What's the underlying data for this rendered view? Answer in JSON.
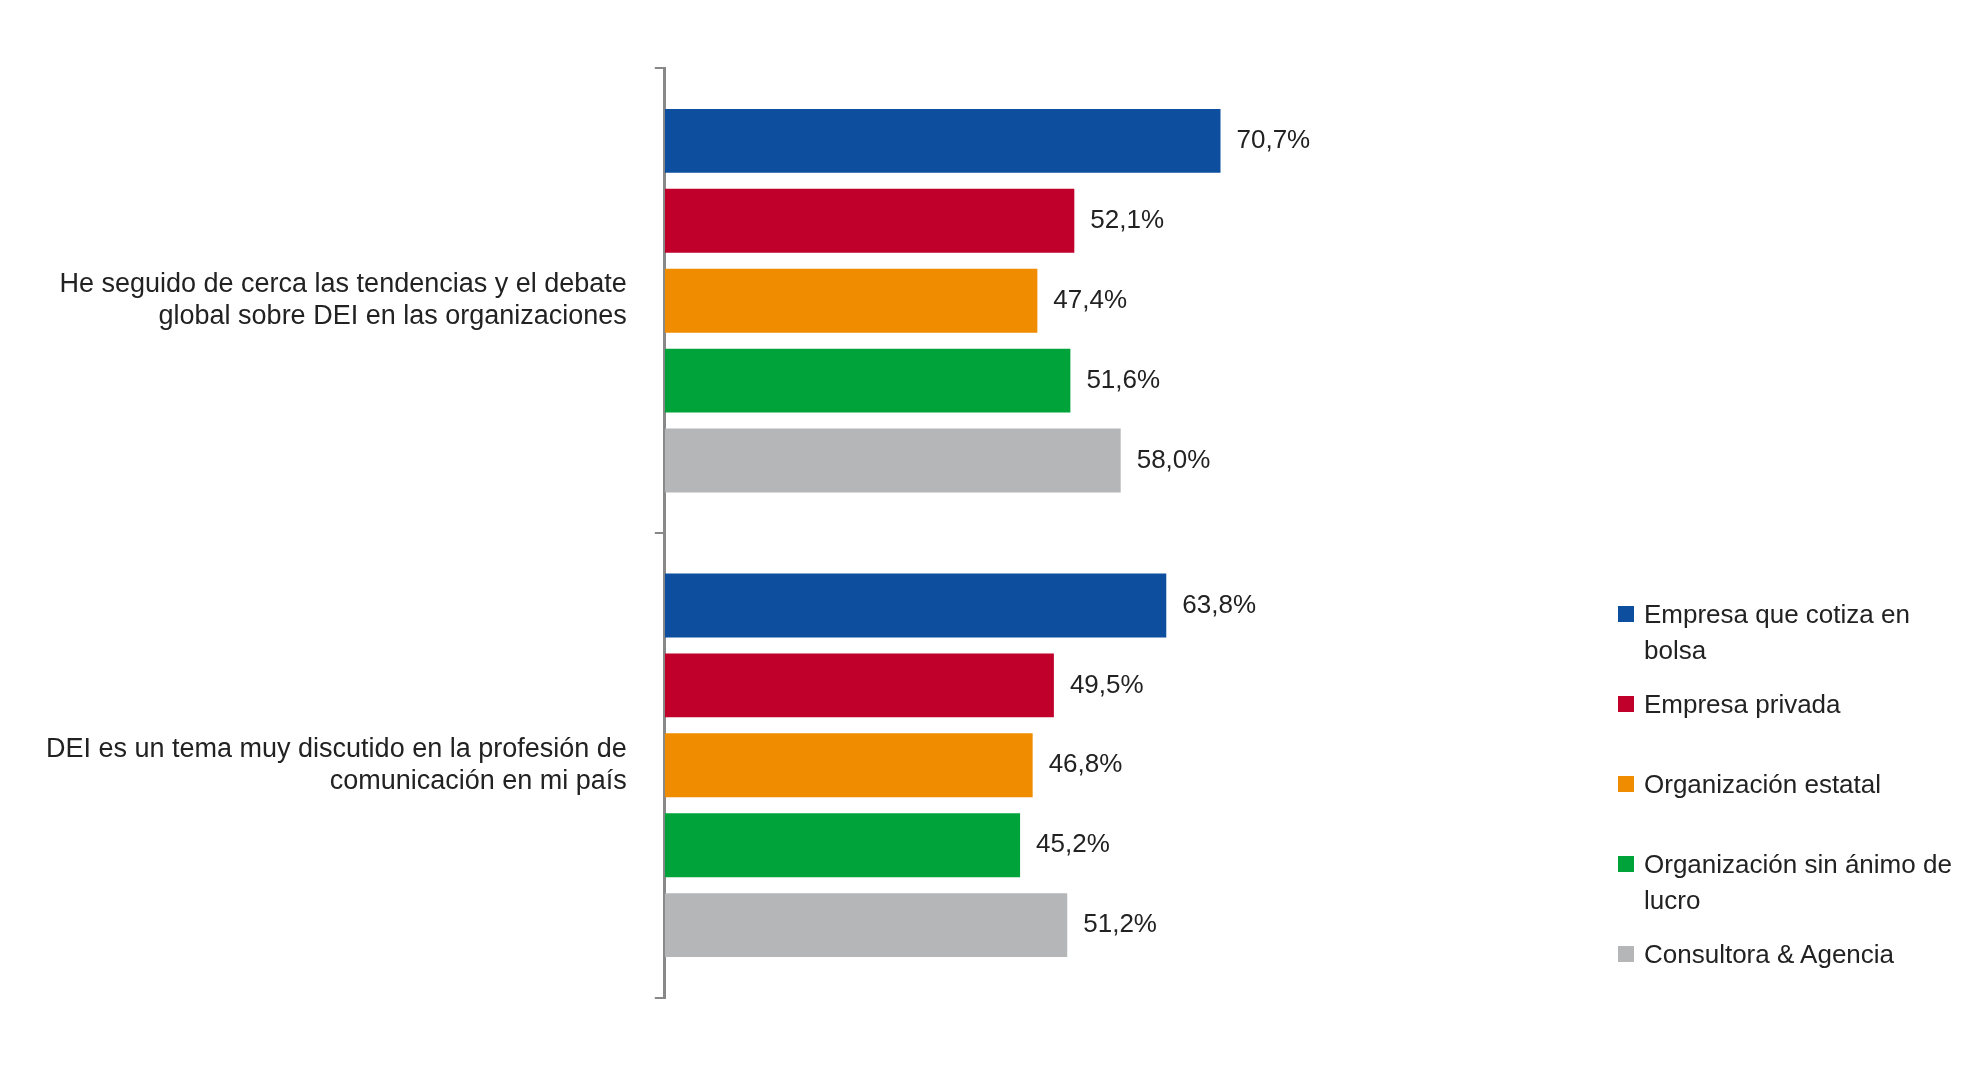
{
  "chart_data": {
    "type": "bar",
    "orientation": "horizontal",
    "legend": "right",
    "categories": [
      "He seguido de cerca las tendencias y el debate global sobre DEI en las organizaciones",
      "DEI es un tema muy discutido en la profesión de comunicación en mi país"
    ],
    "series": [
      {
        "name": "Empresa que cotiza en bolsa",
        "color": "#0d4f9e",
        "values": [
          70.7,
          63.8
        ],
        "value_labels": [
          "70,7%",
          "63,8%"
        ]
      },
      {
        "name": "Empresa privada",
        "color": "#c0002b",
        "values": [
          52.1,
          49.5
        ],
        "value_labels": [
          "52,1%",
          "49,5%"
        ]
      },
      {
        "name": "Organización estatal",
        "color": "#f08c00",
        "values": [
          47.4,
          46.8
        ],
        "value_labels": [
          "47,4%",
          "46,8%"
        ]
      },
      {
        "name": "Organización sin ánimo de lucro",
        "color": "#00a33a",
        "values": [
          51.6,
          45.2
        ],
        "value_labels": [
          "51,6%",
          "45,2%"
        ]
      },
      {
        "name": "Consultora & Agencia",
        "color": "#b5b6b8",
        "values": [
          58.0,
          51.2
        ],
        "value_labels": [
          "58,0%",
          "51,2%"
        ]
      }
    ]
  }
}
